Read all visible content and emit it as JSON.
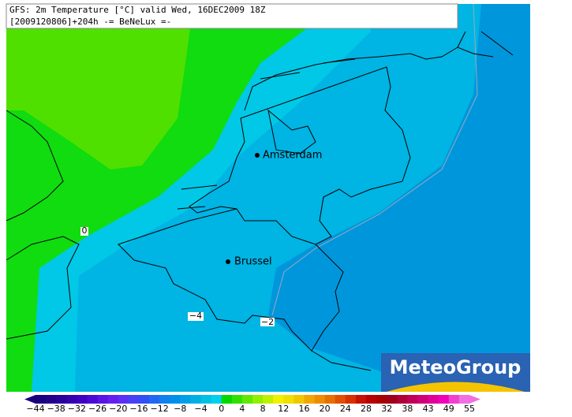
{
  "header": {
    "line1": "GFS: 2m Temperature [°C] valid Wed, 16DEC2009 18Z",
    "line2": "[2009120806]+204h  -= BeNeLux =-"
  },
  "cities": [
    "Amsterdam",
    "Brussel"
  ],
  "contour_labels": [
    "0",
    "−4",
    "−2"
  ],
  "logo": "MeteoGroup",
  "legend": {
    "ticks": [
      "−44",
      "−38",
      "−32",
      "−26",
      "−20",
      "−16",
      "−12",
      "−8",
      "−4",
      "0",
      "4",
      "8",
      "12",
      "16",
      "20",
      "24",
      "28",
      "32",
      "38",
      "43",
      "49",
      "55"
    ],
    "colors": [
      "#1a0080",
      "#22008c",
      "#2a009c",
      "#3400b0",
      "#4000c4",
      "#4c08d4",
      "#5a14e4",
      "#6420f0",
      "#5a30f4",
      "#4840f4",
      "#3050f4",
      "#2068f0",
      "#1080f0",
      "#0090ec",
      "#00a0e8",
      "#00b0e4",
      "#00c0e4",
      "#00d0ec",
      "#00d800",
      "#30e000",
      "#60e800",
      "#90f000",
      "#c0f000",
      "#f0f000",
      "#f0e000",
      "#f0c800",
      "#f0a800",
      "#f08c00",
      "#e87000",
      "#e05000",
      "#d83000",
      "#c81000",
      "#b80000",
      "#a80000",
      "#a0001c",
      "#b00038",
      "#c00058",
      "#d00078",
      "#e00098",
      "#f000b8",
      "#f040d0",
      "#f070e0"
    ]
  }
}
